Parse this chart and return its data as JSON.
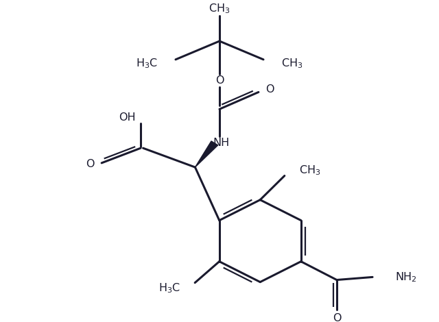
{
  "bg_color": "#ffffff",
  "line_color": "#1a1a2e",
  "lw_main": 2.2,
  "lw_dbl": 1.6,
  "font_size": 11.5,
  "figsize": [
    6.4,
    4.7
  ],
  "dpi": 100,
  "xlim": [
    50,
    590
  ],
  "ylim": [
    20,
    460
  ]
}
